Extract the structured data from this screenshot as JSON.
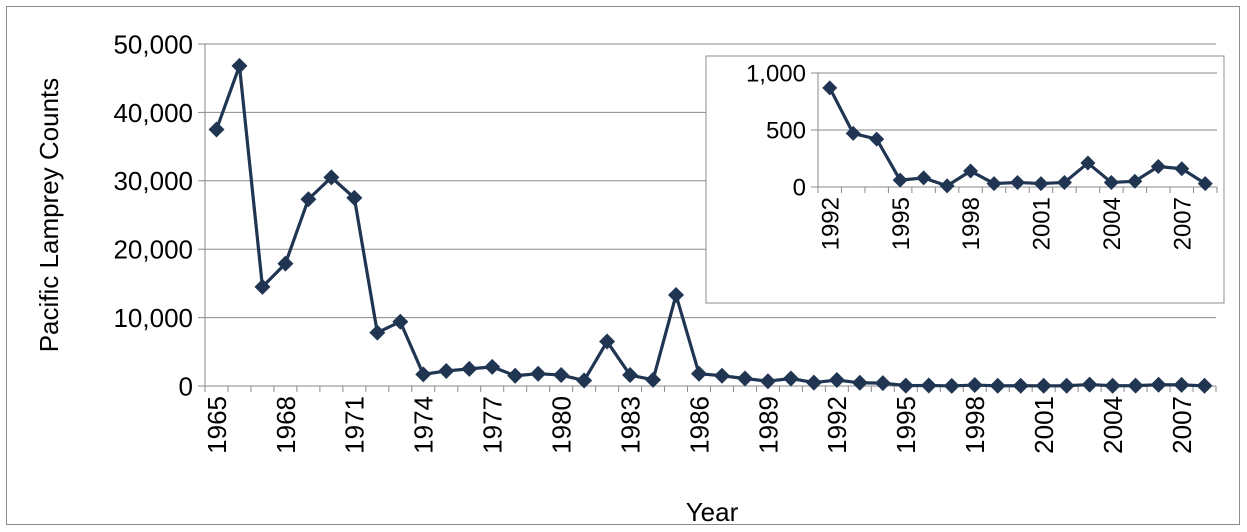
{
  "chart_data": [
    {
      "type": "line",
      "xlabel": "Year",
      "ylabel": "Pacific Lamprey Counts",
      "ylim": [
        0,
        50000
      ],
      "yticks": [
        "0",
        "10,000",
        "20,000",
        "30,000",
        "40,000",
        "50,000"
      ],
      "xticks": [
        "1965",
        "1968",
        "1971",
        "1974",
        "1977",
        "1980",
        "1983",
        "1986",
        "1989",
        "1992",
        "1995",
        "1998",
        "2001",
        "2004",
        "2007"
      ],
      "grid": "horizontal",
      "marker": "diamond",
      "color": "#1f3552",
      "x": [
        1965,
        1966,
        1967,
        1968,
        1969,
        1970,
        1971,
        1972,
        1973,
        1974,
        1975,
        1976,
        1977,
        1978,
        1979,
        1980,
        1981,
        1982,
        1983,
        1984,
        1985,
        1986,
        1987,
        1988,
        1989,
        1990,
        1991,
        1992,
        1993,
        1994,
        1995,
        1996,
        1997,
        1998,
        1999,
        2000,
        2001,
        2002,
        2003,
        2004,
        2005,
        2006,
        2007,
        2008
      ],
      "y": [
        37500,
        46800,
        14500,
        17900,
        27300,
        30500,
        27500,
        7800,
        9400,
        1700,
        2200,
        2500,
        2800,
        1500,
        1800,
        1600,
        800,
        6500,
        1600,
        900,
        13300,
        1800,
        1500,
        1100,
        700,
        1100,
        500,
        870,
        470,
        420,
        60,
        80,
        10,
        140,
        30,
        40,
        30,
        40,
        210,
        40,
        50,
        180,
        160,
        30
      ]
    },
    {
      "type": "line",
      "xlabel": "",
      "ylabel": "",
      "ylim": [
        0,
        1000
      ],
      "yticks": [
        "0",
        "500",
        "1,000"
      ],
      "xticks": [
        "1992",
        "1995",
        "1998",
        "2001",
        "2004",
        "2007"
      ],
      "grid": "horizontal",
      "marker": "diamond",
      "color": "#1f3552",
      "x": [
        1992,
        1993,
        1994,
        1995,
        1996,
        1997,
        1998,
        1999,
        2000,
        2001,
        2002,
        2003,
        2004,
        2005,
        2006,
        2007,
        2008
      ],
      "y": [
        870,
        470,
        420,
        60,
        80,
        10,
        140,
        30,
        40,
        30,
        40,
        210,
        40,
        50,
        180,
        160,
        30
      ]
    }
  ]
}
